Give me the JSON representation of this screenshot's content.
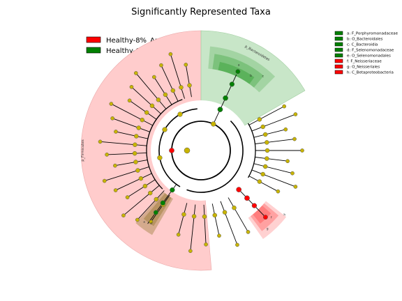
{
  "chart_data": {
    "type": "cladogram",
    "title": "Significantly Represented Taxa",
    "groups": [
      {
        "name": "Healthy-8%_Arginine",
        "color": "#ff0000"
      },
      {
        "name": "Healthy-Control",
        "color": "#008000"
      }
    ],
    "taxa_legend": [
      {
        "label": "a: F_Porphyromonadaceae",
        "group": "Healthy-Control",
        "color": "#008000"
      },
      {
        "label": "b: O_Bacteroidales",
        "group": "Healthy-Control",
        "color": "#008000"
      },
      {
        "label": "c: C_Bacteroidia",
        "group": "Healthy-Control",
        "color": "#008000"
      },
      {
        "label": "d: F_Selenomonadaceae",
        "group": "Healthy-Control",
        "color": "#008000"
      },
      {
        "label": "e: O_Selenomonadales",
        "group": "Healthy-Control",
        "color": "#008000"
      },
      {
        "label": "f: F_Neisseriaceae",
        "group": "Healthy-8%_Arginine",
        "color": "#ff0000"
      },
      {
        "label": "g: O_Neisseriales",
        "group": "Healthy-8%_Arginine",
        "color": "#ff0000"
      },
      {
        "label": "h: C_Betaproteobacteria",
        "group": "Healthy-8%_Arginine",
        "color": "#ff0000"
      }
    ],
    "phylum_sectors": [
      {
        "label": "p_Firmicutes",
        "group": "Healthy-8%_Arginine"
      },
      {
        "label": "p_Bacteroidetes",
        "group": "Healthy-Control"
      }
    ],
    "clade_letters": [
      "a",
      "b",
      "c",
      "d",
      "e",
      "f",
      "g",
      "h"
    ],
    "colors": {
      "node_neutral": "#c8b400",
      "red_sector": "#ffcccc",
      "green_sector": "#c8e6c8",
      "red_highlight": "#ff6666",
      "green_highlight": "#33a033",
      "olive_highlight": "#a08040"
    }
  }
}
